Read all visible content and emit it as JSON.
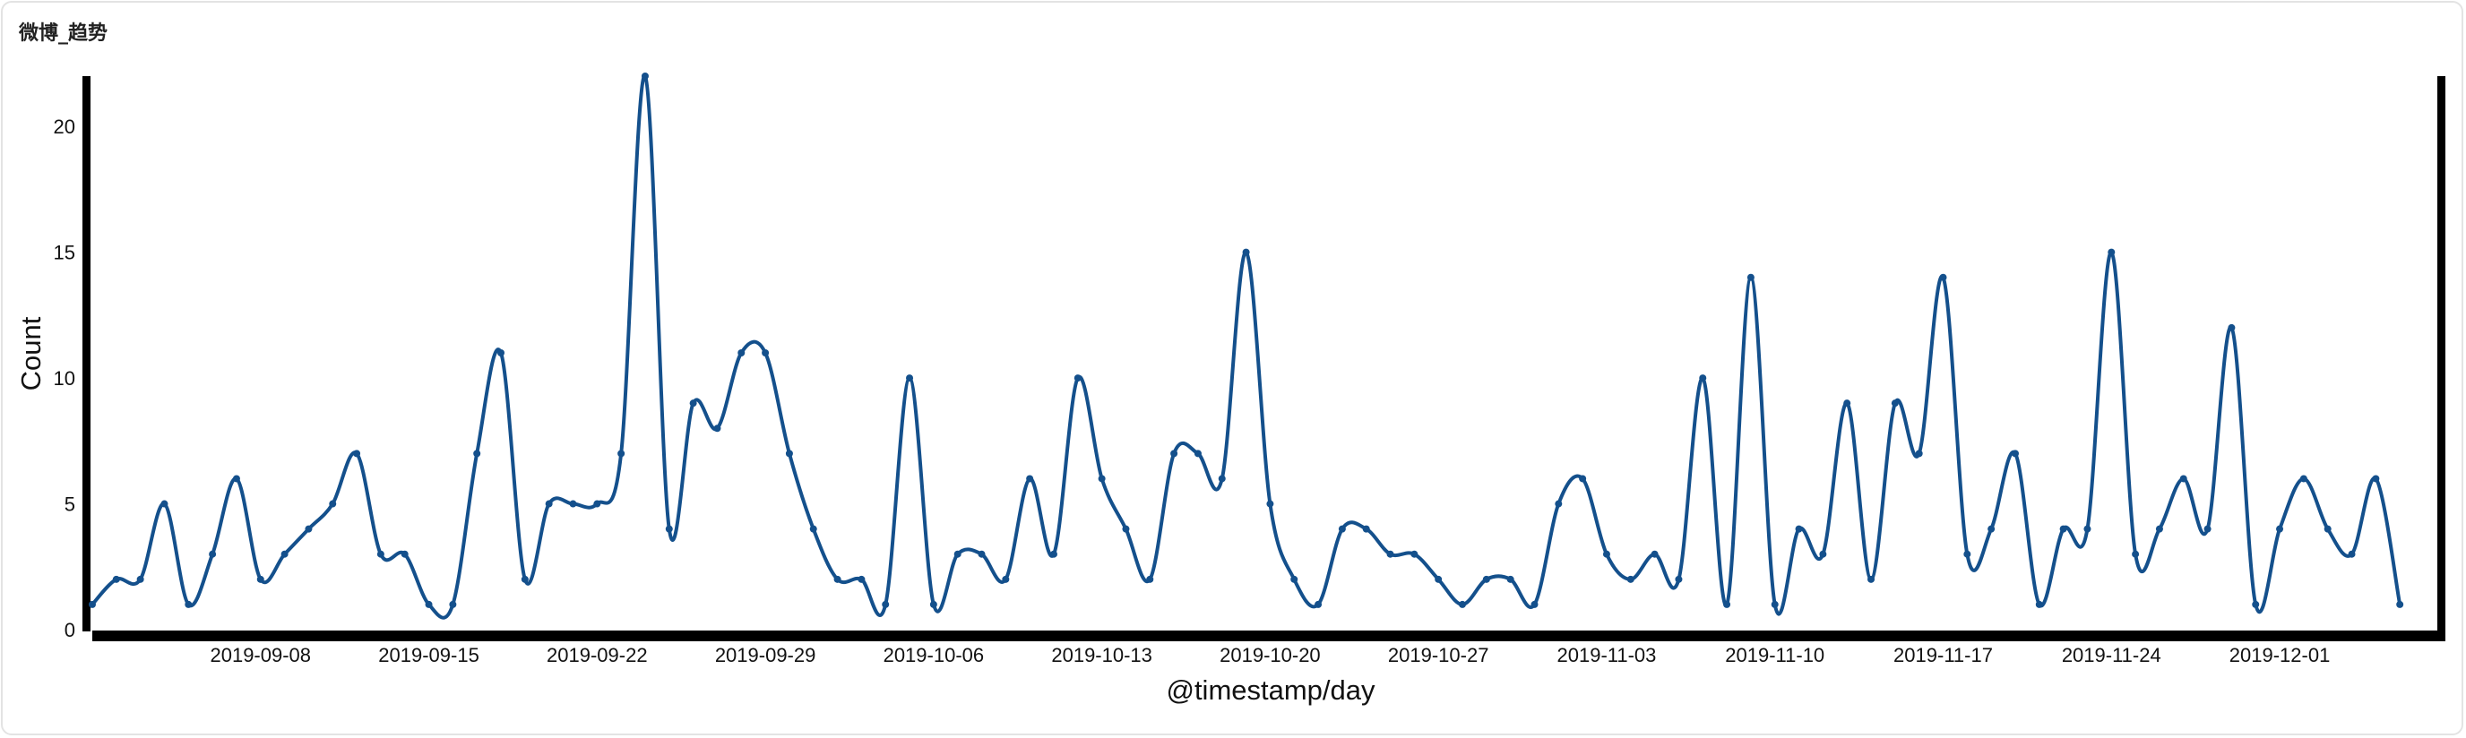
{
  "panel": {
    "title": "微博_趋势"
  },
  "chart_data": {
    "type": "line",
    "xlabel": "@timestamp/day",
    "ylabel": "Count",
    "ylim": [
      0,
      22
    ],
    "y_ticks": [
      "0",
      "5",
      "10",
      "15",
      "20"
    ],
    "x_tick_labels": [
      "2019-09-08",
      "2019-09-15",
      "2019-09-22",
      "2019-09-29",
      "2019-10-06",
      "2019-10-13",
      "2019-10-20",
      "2019-10-27",
      "2019-11-03",
      "2019-11-10",
      "2019-11-17",
      "2019-11-24",
      "2019-12-01"
    ],
    "x_start": "2019-09-01",
    "x_end": "2019-12-07",
    "grid": false,
    "line_color": "#14508c",
    "series": [
      {
        "name": "",
        "values": [
          1,
          2,
          2,
          5,
          1,
          3,
          6,
          2,
          3,
          4,
          5,
          7,
          3,
          3,
          1,
          1,
          7,
          11,
          2,
          5,
          5,
          5,
          7,
          22,
          4,
          9,
          8,
          11,
          11,
          7,
          4,
          2,
          2,
          1,
          10,
          1,
          3,
          3,
          2,
          6,
          3,
          10,
          6,
          4,
          2,
          7,
          7,
          6,
          15,
          5,
          2,
          1,
          4,
          4,
          3,
          3,
          2,
          1,
          2,
          2,
          1,
          5,
          6,
          3,
          2,
          3,
          2,
          10,
          1,
          14,
          1,
          4,
          3,
          9,
          2,
          9,
          7,
          14,
          3,
          4,
          7,
          1,
          4,
          4,
          15,
          3,
          4,
          6,
          4,
          12,
          1,
          4,
          6,
          4,
          3,
          6,
          1
        ]
      }
    ]
  }
}
